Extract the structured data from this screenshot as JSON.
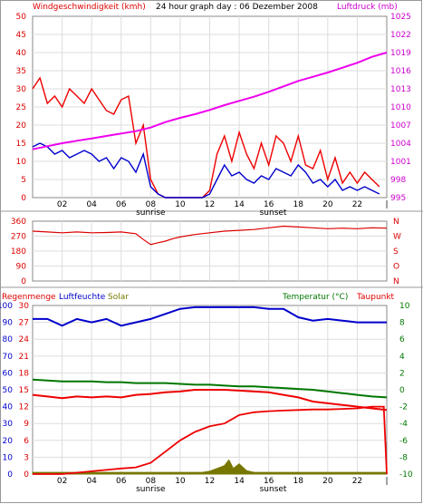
{
  "chart_data": [
    {
      "type": "line",
      "title": "24 hour graph day : 06 Dezember 2008",
      "left_axis": {
        "label": "Windgeschwindigkeit (kmh)",
        "range": [
          0,
          50
        ],
        "ticks": [
          "0",
          "5",
          "10",
          "15",
          "20",
          "25",
          "30",
          "35",
          "40",
          "45",
          "50"
        ],
        "color": "#dd0000"
      },
      "right_axis": {
        "label": "Luftdruck (mb)",
        "range": [
          995,
          1025
        ],
        "ticks": [
          "995",
          "998",
          "1001",
          "1004",
          "1007",
          "1010",
          "1013",
          "1016",
          "1019",
          "1022",
          "1025"
        ],
        "color": "#cc00cc"
      },
      "x_ticks": [
        "02",
        "04",
        "06",
        "08",
        "10",
        "12",
        "14",
        "16",
        "18",
        "20",
        "22"
      ],
      "x_end_tick": "|",
      "annotations": {
        "sunrise": "sunrise",
        "sunset": "sunset"
      },
      "series": [
        {
          "name": "Windgeschwindigkeit (kmh)",
          "role": "gust",
          "color": "#ee0000",
          "axis": "left",
          "x": [
            0,
            0.5,
            1,
            1.5,
            2,
            2.5,
            3,
            3.5,
            4,
            4.5,
            5,
            5.5,
            6,
            6.5,
            7,
            7.5,
            8,
            8.5,
            9,
            9.5,
            10,
            10.5,
            11,
            11.5,
            12,
            12.5,
            13,
            13.5,
            14,
            14.5,
            15,
            15.5,
            16,
            16.5,
            17,
            17.5,
            18,
            18.5,
            19,
            19.5,
            20,
            20.5,
            21,
            21.5,
            22,
            22.5,
            23,
            23.5
          ],
          "y": [
            30,
            33,
            26,
            28,
            25,
            30,
            28,
            26,
            30,
            27,
            24,
            23,
            27,
            28,
            15,
            20,
            5,
            1,
            0,
            0,
            0,
            0,
            0,
            0,
            2,
            12,
            17,
            10,
            18,
            12,
            8,
            15,
            9,
            17,
            15,
            10,
            17,
            9,
            8,
            13,
            5,
            11,
            4,
            7,
            4,
            7,
            5,
            3
          ]
        },
        {
          "name": "Windgeschwindigkeit (kmh)",
          "role": "average",
          "color": "#0000cc",
          "axis": "left",
          "x": [
            0,
            0.5,
            1,
            1.5,
            2,
            2.5,
            3,
            3.5,
            4,
            4.5,
            5,
            5.5,
            6,
            6.5,
            7,
            7.5,
            8,
            8.5,
            9,
            9.5,
            10,
            10.5,
            11,
            11.5,
            12,
            12.5,
            13,
            13.5,
            14,
            14.5,
            15,
            15.5,
            16,
            16.5,
            17,
            17.5,
            18,
            18.5,
            19,
            19.5,
            20,
            20.5,
            21,
            21.5,
            22,
            22.5,
            23,
            23.5
          ],
          "y": [
            14,
            15,
            14,
            12,
            13,
            11,
            12,
            13,
            12,
            10,
            11,
            8,
            11,
            10,
            7,
            12,
            3,
            1,
            0,
            0,
            0,
            0,
            0,
            0,
            1,
            5,
            9,
            6,
            7,
            5,
            4,
            6,
            5,
            8,
            7,
            6,
            9,
            7,
            4,
            5,
            3,
            5,
            2,
            3,
            2,
            3,
            2,
            1
          ]
        },
        {
          "name": "Luftdruck (mb)",
          "color": "#ee00ee",
          "axis": "right",
          "x": [
            0,
            1,
            2,
            3,
            4,
            5,
            6,
            7,
            8,
            9,
            10,
            11,
            12,
            13,
            14,
            15,
            16,
            17,
            18,
            19,
            20,
            21,
            22,
            23,
            24
          ],
          "y": [
            1003,
            1003.5,
            1004,
            1004.4,
            1004.8,
            1005.2,
            1005.6,
            1006,
            1006.6,
            1007.5,
            1008.2,
            1008.8,
            1009.5,
            1010.3,
            1011,
            1011.7,
            1012.5,
            1013.4,
            1014.3,
            1015,
            1015.7,
            1016.5,
            1017.3,
            1018.3,
            1019
          ]
        }
      ]
    },
    {
      "type": "line",
      "left_axis": {
        "range": [
          0,
          360
        ],
        "ticks": [
          "0",
          "90",
          "180",
          "270",
          "360"
        ],
        "color": "#dd0000"
      },
      "right_axis": {
        "ticks": [
          "N",
          "O",
          "S",
          "W",
          "N"
        ],
        "color": "#dd0000"
      },
      "series": [
        {
          "name": "Windrichtung",
          "color": "#dd0000",
          "x": [
            0,
            1,
            2,
            3,
            4,
            5,
            6,
            7,
            7.5,
            8,
            8.5,
            9,
            9.5,
            10,
            11,
            12,
            13,
            14,
            15,
            16,
            17,
            18,
            19,
            20,
            21,
            22,
            23,
            24
          ],
          "y": [
            300,
            295,
            290,
            295,
            290,
            292,
            295,
            285,
            250,
            220,
            230,
            240,
            255,
            265,
            280,
            290,
            300,
            305,
            310,
            320,
            330,
            325,
            320,
            315,
            318,
            315,
            320,
            318
          ]
        }
      ]
    },
    {
      "type": "line",
      "left_axis": {
        "label": "Regenmenge",
        "ticks": [
          "0",
          "3",
          "6",
          "9",
          "12",
          "15",
          "18",
          "21",
          "24",
          "27",
          "30"
        ],
        "range": [
          0,
          30
        ],
        "color": "#dd0000"
      },
      "left_axis_2": {
        "label": "Luftfeuchte",
        "ticks": [
          "0",
          "10",
          "20",
          "30",
          "40",
          "50",
          "60",
          "70",
          "80",
          "90",
          "100"
        ],
        "range": [
          0,
          100
        ],
        "color": "#0000cc"
      },
      "labels": {
        "solar": "Solar",
        "temperature": "Temperatur (°C)",
        "dewpoint": "Taupunkt"
      },
      "right_axis": {
        "ticks": [
          "-10",
          "-8",
          "-6",
          "-4",
          "-2",
          "0",
          "2",
          "4",
          "6",
          "8",
          "10"
        ],
        "range": [
          -10,
          10
        ],
        "color": "#007700"
      },
      "series": [
        {
          "name": "Luftfeuchte",
          "color": "#0000cc",
          "axis": "humidity",
          "x": [
            0,
            1,
            2,
            3,
            4,
            5,
            6,
            7,
            8,
            9,
            10,
            11,
            12,
            13,
            14,
            15,
            16,
            17,
            18,
            19,
            20,
            21,
            22,
            23,
            24
          ],
          "y": [
            92,
            92,
            88,
            92,
            90,
            92,
            88,
            90,
            92,
            95,
            98,
            99,
            99,
            99,
            99,
            99,
            98,
            98,
            93,
            91,
            92,
            91,
            90,
            90,
            90
          ]
        },
        {
          "name": "Temperatur (°C)",
          "color": "#007700",
          "axis": "temp",
          "x": [
            0,
            1,
            2,
            3,
            4,
            5,
            6,
            7,
            8,
            9,
            10,
            11,
            12,
            13,
            14,
            15,
            16,
            17,
            18,
            19,
            20,
            21,
            22,
            23,
            24
          ],
          "y": [
            1.2,
            1.1,
            1.0,
            1.0,
            1.0,
            0.9,
            0.9,
            0.8,
            0.8,
            0.8,
            0.7,
            0.6,
            0.6,
            0.5,
            0.4,
            0.4,
            0.3,
            0.2,
            0.1,
            0,
            -0.2,
            -0.4,
            -0.6,
            -0.8,
            -0.9
          ]
        },
        {
          "name": "Taupunkt",
          "color": "#ee0000",
          "axis": "temp",
          "x": [
            0,
            1,
            2,
            3,
            4,
            5,
            6,
            7,
            8,
            9,
            10,
            11,
            12,
            13,
            14,
            15,
            16,
            17,
            18,
            19,
            20,
            21,
            22,
            23,
            24
          ],
          "y": [
            -0.6,
            -0.8,
            -1.0,
            -0.8,
            -0.9,
            -0.8,
            -0.9,
            -0.6,
            -0.5,
            -0.3,
            -0.2,
            0.0,
            0.0,
            0.0,
            -0.1,
            -0.2,
            -0.3,
            -0.6,
            -0.9,
            -1.4,
            -1.6,
            -1.8,
            -2.0,
            -2.2,
            -2.4
          ]
        },
        {
          "name": "Regenmenge",
          "color": "#ee0000",
          "axis": "rain",
          "x": [
            0,
            2,
            4,
            6,
            7,
            8,
            9,
            10,
            11,
            12,
            13,
            14,
            15,
            16,
            17,
            18,
            19,
            20,
            21,
            22,
            23,
            23.8,
            24
          ],
          "y": [
            0,
            0,
            0.5,
            1,
            1.2,
            2,
            4,
            6,
            7.5,
            8.5,
            9,
            10.5,
            11,
            11.2,
            11.3,
            11.4,
            11.5,
            11.5,
            11.6,
            11.7,
            12,
            12,
            0
          ]
        },
        {
          "name": "Solar",
          "color": "#777700",
          "axis": "rain",
          "x": [
            0,
            8.5,
            9,
            10,
            11,
            11.5,
            12,
            12.5,
            13,
            13.3,
            13.6,
            14,
            14.5,
            15,
            16,
            24
          ],
          "y": [
            0.3,
            0.3,
            0.3,
            0.3,
            0.3,
            0.3,
            0.5,
            1,
            1.5,
            2.5,
            1,
            1.8,
            0.6,
            0.3,
            0.3,
            0.3
          ]
        }
      ]
    }
  ]
}
